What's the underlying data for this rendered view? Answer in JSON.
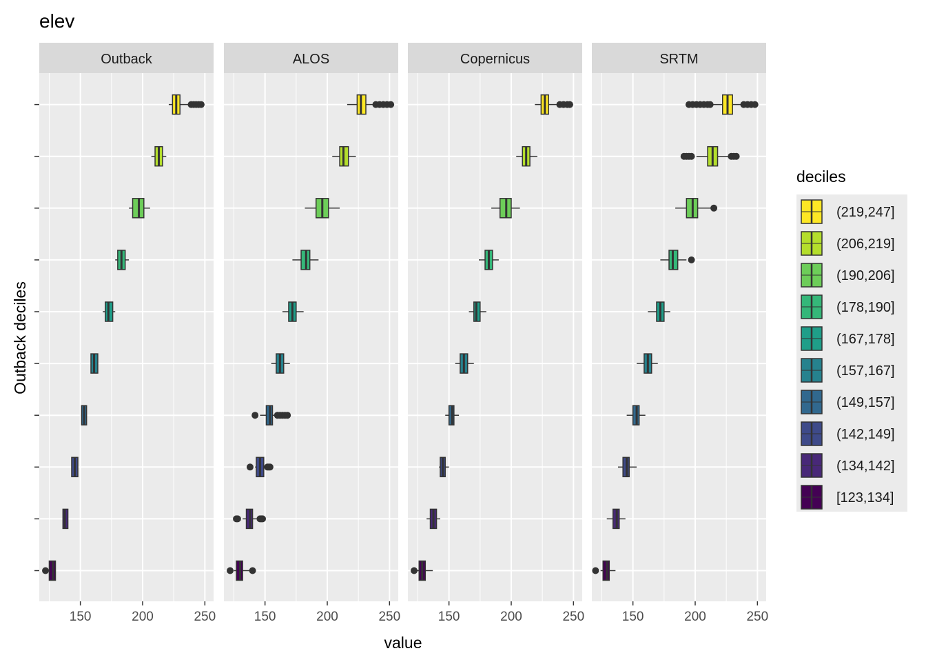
{
  "chart_data": {
    "type": "boxplot",
    "title": "elev",
    "xlabel": "value",
    "ylabel": "Outback deciles",
    "xlim": [
      117,
      257
    ],
    "x_ticks": [
      150,
      200,
      250
    ],
    "x_tick_labels": [
      "150",
      "200",
      "250"
    ],
    "grid": true,
    "legend": {
      "title": "deciles",
      "placement": "right",
      "entries": [
        "(219,247]",
        "(206,219]",
        "(190,206]",
        "(178,190]",
        "(167,178]",
        "(157,167]",
        "(149,157]",
        "(142,149]",
        "(134,142]",
        "[123,134]"
      ]
    },
    "colors": [
      "#FDE725",
      "#B4DE2C",
      "#6DCD59",
      "#35B779",
      "#1F9E89",
      "#26828E",
      "#31688E",
      "#3E4A89",
      "#482878",
      "#440154"
    ],
    "panels": [
      {
        "name": "Outback",
        "boxes": [
          {
            "q1": 125,
            "median": 128,
            "q3": 130,
            "whisker_low": 125,
            "whisker_high": 130,
            "outliers": [
              122
            ]
          },
          {
            "q1": 136,
            "median": 137.5,
            "q3": 140,
            "whisker_low": 136,
            "whisker_high": 140,
            "outliers": []
          },
          {
            "q1": 143,
            "median": 145.5,
            "q3": 148,
            "whisker_low": 143,
            "whisker_high": 148,
            "outliers": []
          },
          {
            "q1": 151,
            "median": 153,
            "q3": 155,
            "whisker_low": 151,
            "whisker_high": 155,
            "outliers": []
          },
          {
            "q1": 158.5,
            "median": 161,
            "q3": 164,
            "whisker_low": 158.5,
            "whisker_high": 164,
            "outliers": []
          },
          {
            "q1": 170,
            "median": 172.5,
            "q3": 176,
            "whisker_low": 168,
            "whisker_high": 178,
            "outliers": []
          },
          {
            "q1": 180,
            "median": 183,
            "q3": 186,
            "whisker_low": 178,
            "whisker_high": 189,
            "outliers": []
          },
          {
            "q1": 192,
            "median": 197,
            "q3": 201,
            "whisker_low": 189,
            "whisker_high": 206,
            "outliers": []
          },
          {
            "q1": 210,
            "median": 213,
            "q3": 216,
            "whisker_low": 207,
            "whisker_high": 219,
            "outliers": []
          },
          {
            "q1": 224,
            "median": 227,
            "q3": 230,
            "whisker_low": 221,
            "whisker_high": 238,
            "outliers": [
              239,
              241,
              243,
              245,
              247
            ]
          }
        ]
      },
      {
        "name": "ALOS",
        "boxes": [
          {
            "q1": 127,
            "median": 130,
            "q3": 132,
            "whisker_low": 125,
            "whisker_high": 139,
            "outliers": [
              122,
              140
            ]
          },
          {
            "q1": 135,
            "median": 138,
            "q3": 140,
            "whisker_low": 132,
            "whisker_high": 145,
            "outliers": [
              127,
              128,
              146,
              147,
              148
            ]
          },
          {
            "q1": 143,
            "median": 146,
            "q3": 149,
            "whisker_low": 142,
            "whisker_high": 151,
            "outliers": [
              138,
              152,
              153,
              154
            ]
          },
          {
            "q1": 151,
            "median": 154,
            "q3": 156,
            "whisker_low": 146,
            "whisker_high": 159,
            "outliers": [
              142,
              160,
              162,
              164,
              166,
              168
            ]
          },
          {
            "q1": 159,
            "median": 162,
            "q3": 165,
            "whisker_low": 155,
            "whisker_high": 170,
            "outliers": []
          },
          {
            "q1": 169,
            "median": 172,
            "q3": 175,
            "whisker_low": 164,
            "whisker_high": 181,
            "outliers": []
          },
          {
            "q1": 179,
            "median": 183,
            "q3": 186,
            "whisker_low": 172,
            "whisker_high": 193,
            "outliers": []
          },
          {
            "q1": 191,
            "median": 196,
            "q3": 201,
            "whisker_low": 182,
            "whisker_high": 210,
            "outliers": []
          },
          {
            "q1": 210,
            "median": 213,
            "q3": 217,
            "whisker_low": 204,
            "whisker_high": 223,
            "outliers": []
          },
          {
            "q1": 224,
            "median": 227,
            "q3": 231,
            "whisker_low": 216,
            "whisker_high": 238,
            "outliers": [
              239,
              242,
              245,
              248,
              251
            ]
          }
        ]
      },
      {
        "name": "Copernicus",
        "boxes": [
          {
            "q1": 126,
            "median": 128.5,
            "q3": 131,
            "whisker_low": 124,
            "whisker_high": 137,
            "outliers": [
              122
            ]
          },
          {
            "q1": 135,
            "median": 137.5,
            "q3": 140,
            "whisker_low": 132,
            "whisker_high": 143,
            "outliers": []
          },
          {
            "q1": 143,
            "median": 145,
            "q3": 147,
            "whisker_low": 142,
            "whisker_high": 150,
            "outliers": []
          },
          {
            "q1": 150,
            "median": 152.5,
            "q3": 154,
            "whisker_low": 147,
            "whisker_high": 158,
            "outliers": []
          },
          {
            "q1": 159,
            "median": 162,
            "q3": 165,
            "whisker_low": 155,
            "whisker_high": 170,
            "outliers": []
          },
          {
            "q1": 170,
            "median": 172,
            "q3": 175,
            "whisker_low": 166,
            "whisker_high": 180,
            "outliers": []
          },
          {
            "q1": 179,
            "median": 182,
            "q3": 185,
            "whisker_low": 174,
            "whisker_high": 190,
            "outliers": []
          },
          {
            "q1": 191,
            "median": 196,
            "q3": 200,
            "whisker_low": 184,
            "whisker_high": 207,
            "outliers": []
          },
          {
            "q1": 209,
            "median": 212,
            "q3": 215,
            "whisker_low": 204,
            "whisker_high": 221,
            "outliers": []
          },
          {
            "q1": 224,
            "median": 227,
            "q3": 230,
            "whisker_low": 219,
            "whisker_high": 238,
            "outliers": [
              239,
              242,
              245,
              247
            ]
          }
        ]
      },
      {
        "name": "SRTM",
        "boxes": [
          {
            "q1": 126,
            "median": 129,
            "q3": 131,
            "whisker_low": 124,
            "whisker_high": 136,
            "outliers": [
              120
            ]
          },
          {
            "q1": 134,
            "median": 137,
            "q3": 139,
            "whisker_low": 129,
            "whisker_high": 144,
            "outliers": []
          },
          {
            "q1": 142,
            "median": 145,
            "q3": 147,
            "whisker_low": 138,
            "whisker_high": 153,
            "outliers": []
          },
          {
            "q1": 150,
            "median": 153,
            "q3": 155,
            "whisker_low": 145,
            "whisker_high": 160,
            "outliers": []
          },
          {
            "q1": 159,
            "median": 162,
            "q3": 165,
            "whisker_low": 153,
            "whisker_high": 170,
            "outliers": []
          },
          {
            "q1": 169,
            "median": 172,
            "q3": 175,
            "whisker_low": 162,
            "whisker_high": 180,
            "outliers": []
          },
          {
            "q1": 179,
            "median": 182,
            "q3": 186,
            "whisker_low": 172,
            "whisker_high": 193,
            "outliers": [
              197
            ]
          },
          {
            "q1": 193,
            "median": 198,
            "q3": 202,
            "whisker_low": 184,
            "whisker_high": 214,
            "outliers": [
              215
            ]
          },
          {
            "q1": 210,
            "median": 214,
            "q3": 218,
            "whisker_low": 201,
            "whisker_high": 228,
            "outliers": [
              191,
              193,
              195,
              197,
              229,
              231,
              233
            ]
          },
          {
            "q1": 222,
            "median": 226,
            "q3": 230,
            "whisker_low": 213,
            "whisker_high": 238,
            "outliers": [
              195,
              198,
              201,
              204,
              207,
              210,
              212,
              239,
              242,
              245,
              248
            ]
          }
        ]
      }
    ]
  }
}
